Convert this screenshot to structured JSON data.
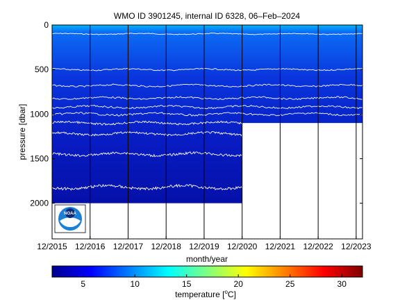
{
  "chart_data": {
    "type": "heatmap",
    "title": "WMO ID 3901245, internal ID 6328, 06–Feb–2024",
    "xlabel": "month/year",
    "ylabel": "pressure [dbar]",
    "x_ticks": [
      "12/2015",
      "12/2016",
      "12/2017",
      "12/2018",
      "12/2019",
      "12/2020",
      "12/2021",
      "12/2022",
      "12/2023"
    ],
    "y_ticks": [
      0,
      500,
      1000,
      1500,
      2000
    ],
    "xlim": [
      "2015-12",
      "2024-02"
    ],
    "ylim": [
      0,
      2400
    ],
    "y_reversed": true,
    "colorbar": {
      "label": "temperature [°C]",
      "label_text": "temperature [",
      "label_deg": "o",
      "label_unit": "C]",
      "range": [
        2,
        32
      ],
      "ticks": [
        5,
        10,
        15,
        20,
        25,
        30
      ]
    },
    "profile_depth": [
      {
        "period": "2015-12 to 2020-12",
        "max_pressure": 2000
      },
      {
        "period": "2020-12 to 2024-02",
        "max_pressure": 1100
      }
    ],
    "contour_levels_approx_pressure": [
      100,
      500,
      680,
      820,
      920,
      1000,
      1100,
      1220,
      1450,
      1820
    ]
  },
  "logo": {
    "name": "NOAA",
    "text": "NOAA"
  }
}
